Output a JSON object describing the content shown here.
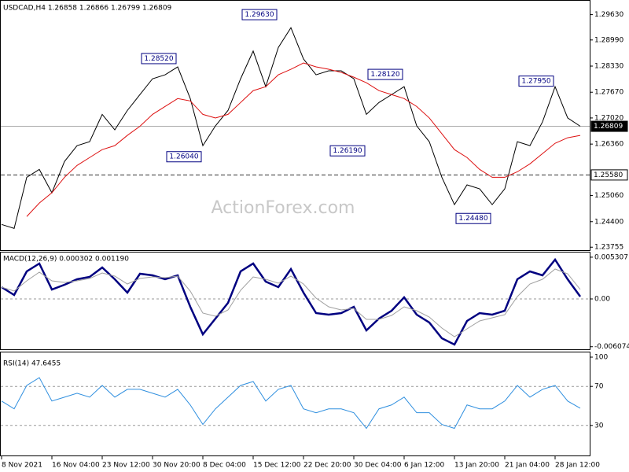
{
  "chart_data": [
    {
      "type": "line",
      "title": "USDCAD,H4  1.26858 1.26866 1.26799 1.26809",
      "watermark": "ActionForex.com",
      "ylim": [
        1.2368,
        1.2996
      ],
      "yticks": [
        {
          "value": 1.2963,
          "label": "1.29630"
        },
        {
          "value": 1.2899,
          "label": "1.28990"
        },
        {
          "value": 1.2833,
          "label": "1.28330"
        },
        {
          "value": 1.2767,
          "label": "1.27670"
        },
        {
          "value": 1.2702,
          "label": "1.27020"
        },
        {
          "value": 1.2636,
          "label": "1.26360"
        },
        {
          "value": 1.2506,
          "label": "1.25060"
        },
        {
          "value": 1.244,
          "label": "1.24400"
        },
        1.23755
      ],
      "series": [
        {
          "color": "#000000",
          "values": [
            1.2433,
            1.2423,
            1.2552,
            1.2572,
            1.2513,
            1.2592,
            1.2632,
            1.2642,
            1.2711,
            1.2672,
            1.2721,
            1.2761,
            1.2801,
            1.2811,
            1.2831,
            1.2751,
            1.2632,
            1.2682,
            1.2721,
            1.2801,
            1.2871,
            1.2781,
            1.288,
            1.293,
            1.2851,
            1.2811,
            1.2821,
            1.2821,
            1.2801,
            1.2711,
            1.2741,
            1.2761,
            1.2781,
            1.2682,
            1.2642,
            1.2552,
            1.2483,
            1.2533,
            1.2523,
            1.2483,
            1.2523,
            1.2642,
            1.2632,
            1.2692,
            1.2781,
            1.2702,
            1.2681
          ]
        },
        {
          "color": "#dd1111",
          "values": [
            null,
            null,
            1.2453,
            1.2487,
            1.2513,
            1.2552,
            1.2582,
            1.2602,
            1.2622,
            1.2632,
            1.2658,
            1.2681,
            1.2711,
            1.2731,
            1.2751,
            1.2745,
            1.2711,
            1.2702,
            1.2711,
            1.2741,
            1.2771,
            1.2781,
            1.2811,
            1.2825,
            1.2841,
            1.2831,
            1.2825,
            1.2817,
            1.2805,
            1.2791,
            1.2771,
            1.2761,
            1.2751,
            1.2731,
            1.2702,
            1.2662,
            1.2622,
            1.2602,
            1.2572,
            1.2552,
            1.2552,
            1.2566,
            1.2586,
            1.2612,
            1.2638,
            1.2652,
            1.2658
          ]
        }
      ],
      "annotations": [
        {
          "label": "1.28520",
          "value": 1.2852,
          "x": 11
        },
        {
          "label": "1.26040",
          "value": 1.2604,
          "x": 13
        },
        {
          "label": "1.29630",
          "value": 1.2963,
          "x": 19
        },
        {
          "label": "1.26190",
          "value": 1.2619,
          "x": 26
        },
        {
          "label": "1.28120",
          "value": 1.2812,
          "x": 29
        },
        {
          "label": "1.24480",
          "value": 1.2448,
          "x": 36
        },
        {
          "label": "1.27950",
          "value": 1.2795,
          "x": 41
        }
      ],
      "hlines": [
        {
          "value": 1.26809,
          "label": "1.26809",
          "dashed": false,
          "fill": "#000000"
        },
        {
          "value": 1.2558,
          "label": "1.25580",
          "dashed": true,
          "fill": "#ffffff"
        }
      ]
    },
    {
      "type": "line",
      "title": "MACD(12,26,9) 0.000302 0.001190",
      "ylim": [
        -0.0063,
        0.0059
      ],
      "yticks": [
        0.005307,
        {
          "value": 0,
          "label": "0.00"
        },
        -0.006074
      ],
      "levels": [
        0
      ],
      "series": [
        {
          "color": "#000080",
          "values": [
            0.0015,
            0.0005,
            0.0035,
            0.0045,
            0.0012,
            0.0018,
            0.0025,
            0.0028,
            0.004,
            0.0025,
            0.0008,
            0.0032,
            0.003,
            0.0025,
            0.003,
            -0.001,
            -0.0045,
            -0.0025,
            -0.0005,
            0.0035,
            0.0045,
            0.0022,
            0.0015,
            0.0038,
            0.0008,
            -0.0018,
            -0.002,
            -0.0018,
            -0.001,
            -0.004,
            -0.0025,
            -0.0015,
            0.0002,
            -0.002,
            -0.003,
            -0.005,
            -0.0058,
            -0.0028,
            -0.0018,
            -0.002,
            -0.0015,
            0.0025,
            0.0035,
            0.003,
            0.005,
            0.0025,
            0.0003
          ]
        },
        {
          "color": "#a0a0a0",
          "values": [
            0.0015,
            0.001,
            0.0023,
            0.0034,
            0.0023,
            0.0021,
            0.0023,
            0.0026,
            0.0033,
            0.0029,
            0.0019,
            0.0026,
            0.0028,
            0.0027,
            0.0029,
            0.001,
            -0.0018,
            -0.0022,
            -0.0014,
            0.0011,
            0.0028,
            0.0025,
            0.002,
            0.0029,
            0.0019,
            0.0001,
            -0.001,
            -0.0014,
            -0.0012,
            -0.0026,
            -0.0026,
            -0.0021,
            -0.001,
            -0.0015,
            -0.0023,
            -0.0037,
            -0.0048,
            -0.0038,
            -0.0028,
            -0.0024,
            -0.002,
            0.0003,
            0.0019,
            0.0025,
            0.0038,
            0.0032,
            0.0012
          ]
        }
      ]
    },
    {
      "type": "line",
      "title": "RSI(14) 47.6455",
      "ylim": [
        0,
        100
      ],
      "yticks": [
        100,
        70,
        30
      ],
      "levels": [
        70,
        30
      ],
      "series": [
        {
          "color": "#2f8fdf",
          "values": [
            55,
            47,
            71,
            79,
            55,
            59,
            63,
            59,
            71,
            59,
            67,
            67,
            63,
            59,
            67,
            51,
            31,
            47,
            59,
            71,
            75,
            55,
            67,
            71,
            47,
            43,
            47,
            47,
            43,
            27,
            47,
            51,
            59,
            43,
            43,
            31,
            27,
            51,
            47,
            47,
            55,
            71,
            59,
            67,
            71,
            55,
            47.6455
          ]
        }
      ],
      "xticks": [
        {
          "value": 0,
          "label": "8 Nov 2021"
        },
        {
          "value": 4,
          "label": "16 Nov 04:00"
        },
        {
          "value": 8,
          "label": "23 Nov 12:00"
        },
        {
          "value": 12,
          "label": "30 Nov 20:00"
        },
        {
          "value": 16,
          "label": "8 Dec 04:00"
        },
        {
          "value": 20,
          "label": "15 Dec 12:00"
        },
        {
          "value": 24,
          "label": "22 Dec 20:00"
        },
        {
          "value": 28,
          "label": "30 Dec 04:00"
        },
        {
          "value": 32,
          "label": "6 Jan 12:00"
        },
        {
          "value": 36,
          "label": "13 Jan 20:00"
        },
        {
          "value": 40,
          "label": "21 Jan 04:00"
        },
        {
          "value": 44,
          "label": "28 Jan 12:00"
        }
      ]
    }
  ]
}
